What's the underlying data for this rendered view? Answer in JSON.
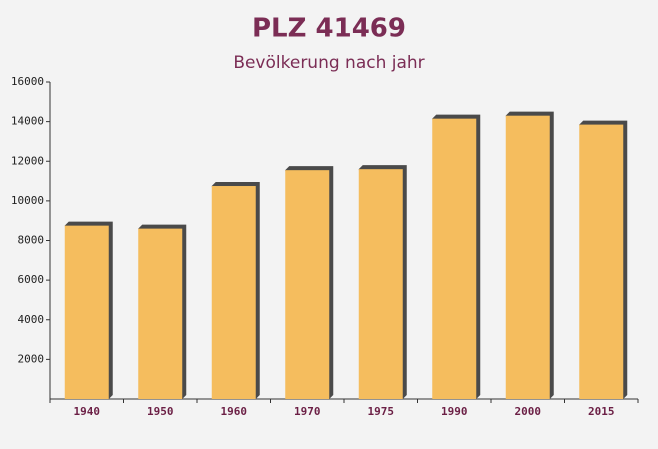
{
  "chart_data": {
    "type": "bar",
    "title": "PLZ 41469",
    "subtitle": "Bevölkerung nach jahr",
    "categories": [
      "1940",
      "1950",
      "1960",
      "1970",
      "1975",
      "1990",
      "2000",
      "2015"
    ],
    "values": [
      8750,
      8600,
      10750,
      11550,
      11600,
      14150,
      14300,
      13850
    ],
    "color": "#f5bd5e",
    "ylim": [
      0,
      16000
    ],
    "yticks": [
      2000,
      4000,
      6000,
      8000,
      10000,
      12000,
      14000,
      16000
    ]
  }
}
